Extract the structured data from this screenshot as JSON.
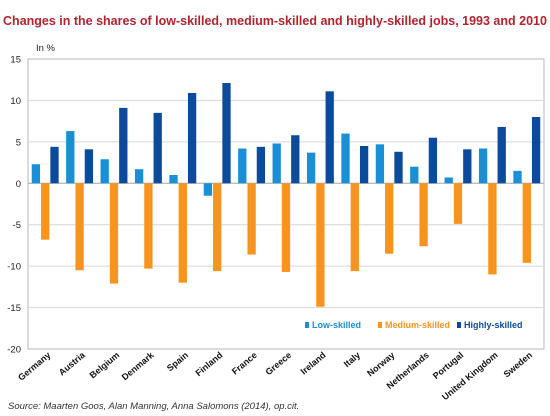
{
  "chart_data": {
    "type": "bar",
    "title": "Changes in the shares of low-skilled, medium-skilled and highly-skilled jobs, 1993 and 2010",
    "ylabel": "In %",
    "xlabel": "",
    "ylim": [
      -20,
      15
    ],
    "yticks": [
      15,
      10,
      5,
      0,
      -5,
      -10,
      -15,
      -20
    ],
    "grid": true,
    "legend_position": "bottom-right",
    "categories": [
      "Germany",
      "Austria",
      "Belgium",
      "Denmark",
      "Spain",
      "Finland",
      "France",
      "Greece",
      "Ireland",
      "Italy",
      "Norway",
      "Netherlands",
      "Portugal",
      "United Kingdom",
      "Sweden"
    ],
    "series": [
      {
        "name": "Low-skilled",
        "color": "#1b8fd6",
        "values": [
          2.3,
          6.3,
          2.9,
          1.7,
          1.0,
          -1.5,
          4.2,
          4.8,
          3.7,
          6.0,
          4.7,
          2.0,
          0.7,
          4.2,
          1.5
        ]
      },
      {
        "name": "Medium-skilled",
        "color": "#f7941d",
        "values": [
          -6.8,
          -10.5,
          -12.1,
          -10.3,
          -12.0,
          -10.6,
          -8.6,
          -10.7,
          -14.9,
          -10.6,
          -8.5,
          -7.6,
          -4.9,
          -11.0,
          -9.6
        ]
      },
      {
        "name": "Highly-skilled",
        "color": "#0c4a9c",
        "values": [
          4.4,
          4.1,
          9.1,
          8.5,
          10.9,
          12.1,
          4.4,
          5.8,
          11.1,
          4.5,
          3.8,
          5.5,
          4.1,
          6.8,
          8.0
        ]
      }
    ]
  },
  "source": "Source: Maarten Goos, Alan Manning, Anna Salomons (2014), op.cit."
}
